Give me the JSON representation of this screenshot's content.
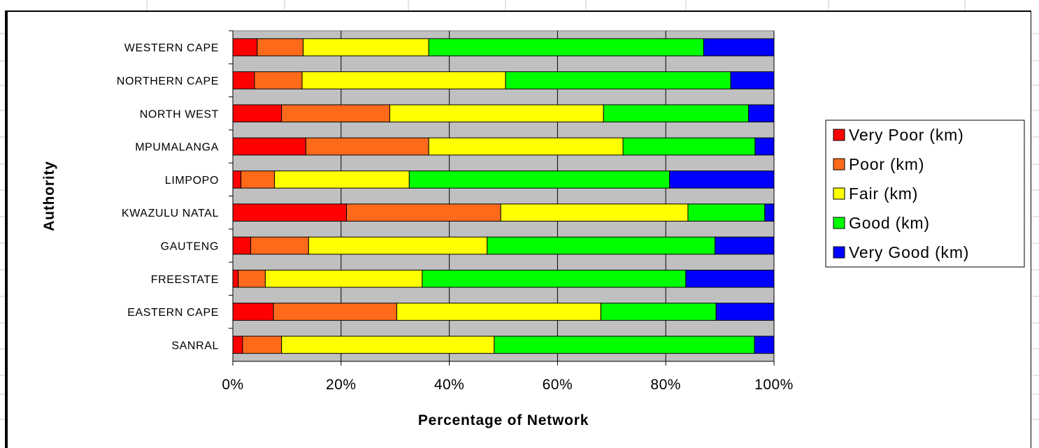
{
  "colors": {
    "Very Poor (km)": "#ff0000",
    "Poor (km)": "#ff6a1a",
    "Fair (km)": "#ffff00",
    "Good (km)": "#00ff00",
    "Very Good (km)": "#0000ff",
    "plot_background": "#c0c0c0"
  },
  "chart_data": {
    "type": "bar",
    "orientation": "horizontal",
    "stacked": "percent",
    "xlabel": "Percentage of Network",
    "ylabel": "Authority",
    "xlim": [
      0,
      100
    ],
    "x_ticks": [
      "0%",
      "20%",
      "40%",
      "60%",
      "80%",
      "100%"
    ],
    "grid": "vertical gridlines",
    "legend_position": "right",
    "categories": [
      "WESTERN CAPE",
      "NORTHERN CAPE",
      "NORTH WEST",
      "MPUMALANGA",
      "LIMPOPO",
      "KWAZULU NATAL",
      "GAUTENG",
      "FREESTATE",
      "EASTERN CAPE",
      "SANRAL"
    ],
    "series": [
      {
        "name": "Very Poor (km)",
        "values": [
          4.5,
          4.0,
          9.0,
          13.5,
          1.5,
          21.0,
          3.3,
          1.0,
          7.5,
          1.8
        ]
      },
      {
        "name": "Poor (km)",
        "values": [
          8.5,
          8.8,
          20.0,
          22.7,
          6.2,
          28.5,
          10.7,
          5.0,
          22.8,
          7.2
        ]
      },
      {
        "name": "Fair (km)",
        "values": [
          23.2,
          37.6,
          39.5,
          35.9,
          24.9,
          34.6,
          33.0,
          29.0,
          37.7,
          39.3
        ]
      },
      {
        "name": "Good (km)",
        "values": [
          50.8,
          41.6,
          26.8,
          24.4,
          48.1,
          14.2,
          42.1,
          48.7,
          21.3,
          48.1
        ]
      },
      {
        "name": "Very Good (km)",
        "values": [
          13.0,
          8.0,
          4.7,
          3.5,
          19.3,
          1.7,
          10.9,
          16.3,
          10.7,
          3.6
        ]
      }
    ]
  }
}
